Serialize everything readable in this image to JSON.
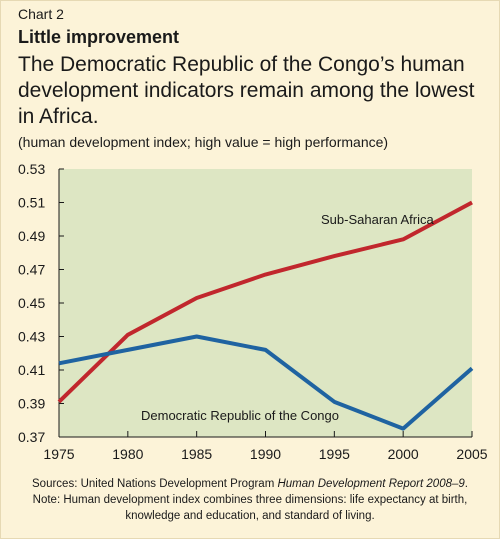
{
  "header": {
    "chart_number": "Chart 2",
    "headline": "Little improvement",
    "subtitle": "The Democratic Republic of the Congo’s human development indicators remain among the lowest in Africa.",
    "units": "(human development index; high value = high performance)"
  },
  "footer": {
    "sources_prefix": "Sources: United Nations Development Program ",
    "sources_title": "Human Development Report 2008–9",
    "sources_suffix": ".",
    "note_line1": "Note: Human development index combines three dimensions: life expectancy at birth,",
    "note_line2": "knowledge and education, and standard of living."
  },
  "colors": {
    "plot_background": "#dde6c3",
    "sub_saharan": "#c1272d",
    "drc": "#1f63a1",
    "page_background": "#fcf3d8"
  },
  "chart_data": {
    "type": "line",
    "title": "Little improvement",
    "xlabel": "",
    "ylabel": "",
    "x": [
      1975,
      1980,
      1985,
      1990,
      1995,
      2000,
      2005
    ],
    "x_tick_labels": [
      "1975",
      "1980",
      "1985",
      "1990",
      "1995",
      "2000",
      "2005"
    ],
    "ylim": [
      0.37,
      0.53
    ],
    "y_ticks": [
      0.37,
      0.39,
      0.41,
      0.43,
      0.45,
      0.47,
      0.49,
      0.51,
      0.53
    ],
    "y_tick_labels": [
      "0.37",
      "0.39",
      "0.41",
      "0.43",
      "0.45",
      "0.47",
      "0.49",
      "0.51",
      "0.53"
    ],
    "grid": false,
    "series": [
      {
        "name": "Sub-Saharan Africa",
        "color": "#c1272d",
        "values": [
          0.391,
          0.431,
          0.453,
          0.467,
          0.478,
          0.488,
          0.51
        ]
      },
      {
        "name": "Democratic Republic of the Congo",
        "color": "#1f63a1",
        "values": [
          0.414,
          0.422,
          0.43,
          0.422,
          0.391,
          0.375,
          0.411
        ]
      }
    ]
  }
}
